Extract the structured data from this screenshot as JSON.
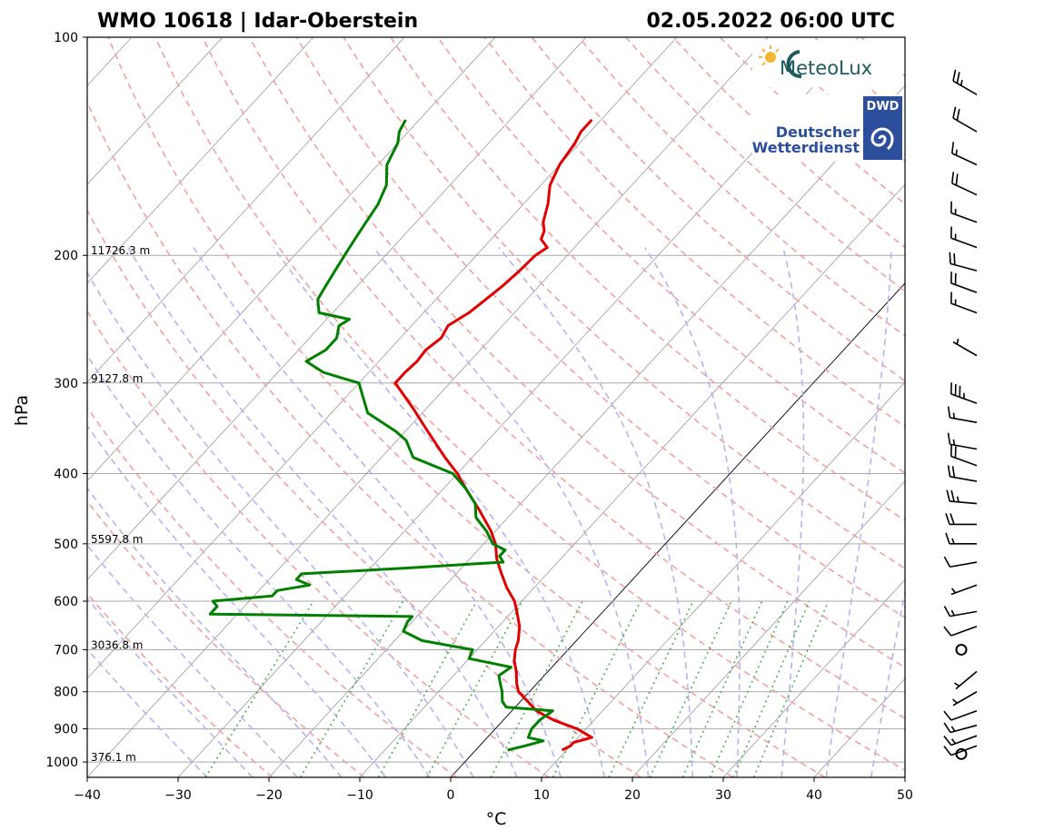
{
  "header": {
    "left_title": "WMO 10618 | Idar-Oberstein",
    "right_title": "02.05.2022 06:00 UTC"
  },
  "logos": {
    "meteolux": "MeteoLux",
    "dwd_box": "DWD",
    "dwd_line1": "Deutscher",
    "dwd_line2": "Wetterdienst"
  },
  "chart_data": {
    "type": "skew-t",
    "xlabel": "°C",
    "ylabel": "hPa",
    "xlim": [
      -40,
      50
    ],
    "plim": [
      1050,
      100
    ],
    "x_ticks": [
      "−40",
      "−30",
      "−20",
      "−10",
      "0",
      "10",
      "20",
      "30",
      "40",
      "50"
    ],
    "x_tick_values": [
      -40,
      -30,
      -20,
      -10,
      0,
      10,
      20,
      30,
      40,
      50
    ],
    "y_ticks": [
      "100",
      "200",
      "300",
      "400",
      "500",
      "600",
      "700",
      "800",
      "900",
      "1000"
    ],
    "y_tick_values": [
      100,
      200,
      300,
      400,
      500,
      600,
      700,
      800,
      900,
      1000
    ],
    "height_labels": [
      {
        "p": 200,
        "label": "11726.3 m"
      },
      {
        "p": 300,
        "label": "9127.8 m"
      },
      {
        "p": 500,
        "label": "5597.8 m"
      },
      {
        "p": 700,
        "label": "3036.8 m"
      },
      {
        "p": 1000,
        "label": "376.1 m"
      }
    ],
    "temperature": {
      "name": "Temperature",
      "color": "#e00000",
      "p": [
        963,
        950,
        940,
        925,
        900,
        875,
        850,
        825,
        800,
        780,
        750,
        725,
        700,
        680,
        650,
        620,
        600,
        575,
        550,
        525,
        500,
        480,
        450,
        420,
        400,
        380,
        350,
        325,
        300,
        290,
        280,
        270,
        260,
        250,
        240,
        230,
        220,
        210,
        200,
        195,
        190,
        185,
        180,
        170,
        160,
        150,
        140,
        135,
        130
      ],
      "t": [
        9.5,
        10.0,
        10.0,
        11.5,
        9.0,
        5.5,
        2.7,
        0.8,
        -1.2,
        -2.2,
        -3.5,
        -4.8,
        -5.8,
        -6.4,
        -7.7,
        -9.5,
        -10.8,
        -13.0,
        -15.0,
        -17.0,
        -18.7,
        -20.5,
        -23.8,
        -27.5,
        -30.0,
        -33.0,
        -37.5,
        -41.5,
        -46.0,
        -46.0,
        -45.8,
        -46.0,
        -45.5,
        -46.0,
        -45.0,
        -44.5,
        -44.0,
        -43.7,
        -43.5,
        -43.0,
        -44.5,
        -45.0,
        -46.0,
        -47.3,
        -49.0,
        -50.0,
        -50.5,
        -51.0,
        -51.0
      ]
    },
    "dewpoint": {
      "name": "Dewpoint",
      "color": "#008000",
      "p": [
        963,
        950,
        935,
        925,
        900,
        875,
        850,
        840,
        825,
        800,
        780,
        760,
        740,
        720,
        700,
        680,
        660,
        640,
        630,
        625,
        620,
        610,
        600,
        590,
        580,
        570,
        560,
        550,
        540,
        530,
        520,
        510,
        500,
        480,
        460,
        440,
        420,
        400,
        380,
        360,
        350,
        330,
        300,
        290,
        280,
        270,
        260,
        250,
        245,
        240,
        230,
        220,
        210,
        200,
        190,
        180,
        170,
        160,
        150,
        140,
        135,
        130
      ],
      "t": [
        3.5,
        5.0,
        6.5,
        4.5,
        4.0,
        4.0,
        4.5,
        -1.0,
        -2.0,
        -3.0,
        -4.0,
        -5.0,
        -4.5,
        -10.0,
        -10.5,
        -17.0,
        -20.0,
        -20.5,
        -20.5,
        -43.0,
        -43.0,
        -43.0,
        -44.0,
        -38.0,
        -38.0,
        -35.0,
        -37.0,
        -37.0,
        -26.0,
        -16.0,
        -17.0,
        -17.0,
        -19.0,
        -21.0,
        -23.5,
        -25.0,
        -27.5,
        -30.5,
        -36.5,
        -39.0,
        -41.0,
        -46.0,
        -50.0,
        -55.0,
        -58.0,
        -57.0,
        -57.0,
        -58.0,
        -57.5,
        -61.5,
        -63.0,
        -63.5,
        -64.0,
        -64.5,
        -65.0,
        -65.5,
        -66.0,
        -67.0,
        -69.0,
        -70.0,
        -71.0,
        -71.5
      ]
    },
    "wind_barbs": [
      {
        "p": 975,
        "dir": 260,
        "kt": 0
      },
      {
        "p": 950,
        "dir": 250,
        "kt": 10
      },
      {
        "p": 920,
        "dir": 250,
        "kt": 15
      },
      {
        "p": 890,
        "dir": 255,
        "kt": 15
      },
      {
        "p": 850,
        "dir": 250,
        "kt": 10
      },
      {
        "p": 800,
        "dir": 240,
        "kt": 5
      },
      {
        "p": 750,
        "dir": 230,
        "kt": 5
      },
      {
        "p": 700,
        "dir": 240,
        "kt": 0
      },
      {
        "p": 650,
        "dir": 250,
        "kt": 10
      },
      {
        "p": 620,
        "dir": 260,
        "kt": 15
      },
      {
        "p": 570,
        "dir": 250,
        "kt": 5
      },
      {
        "p": 530,
        "dir": 260,
        "kt": 10
      },
      {
        "p": 500,
        "dir": 270,
        "kt": 15
      },
      {
        "p": 470,
        "dir": 270,
        "kt": 20
      },
      {
        "p": 440,
        "dir": 275,
        "kt": 25
      },
      {
        "p": 410,
        "dir": 280,
        "kt": 20
      },
      {
        "p": 390,
        "dir": 290,
        "kt": 20
      },
      {
        "p": 370,
        "dir": 280,
        "kt": 15
      },
      {
        "p": 340,
        "dir": 280,
        "kt": 15
      },
      {
        "p": 320,
        "dir": 290,
        "kt": 35
      },
      {
        "p": 275,
        "dir": 300,
        "kt": 5
      },
      {
        "p": 240,
        "dir": 290,
        "kt": 15
      },
      {
        "p": 225,
        "dir": 290,
        "kt": 20
      },
      {
        "p": 210,
        "dir": 285,
        "kt": 20
      },
      {
        "p": 195,
        "dir": 290,
        "kt": 15
      },
      {
        "p": 180,
        "dir": 290,
        "kt": 15
      },
      {
        "p": 165,
        "dir": 295,
        "kt": 20
      },
      {
        "p": 150,
        "dir": 295,
        "kt": 15
      },
      {
        "p": 135,
        "dir": 300,
        "kt": 20
      },
      {
        "p": 120,
        "dir": 300,
        "kt": 25
      }
    ]
  }
}
